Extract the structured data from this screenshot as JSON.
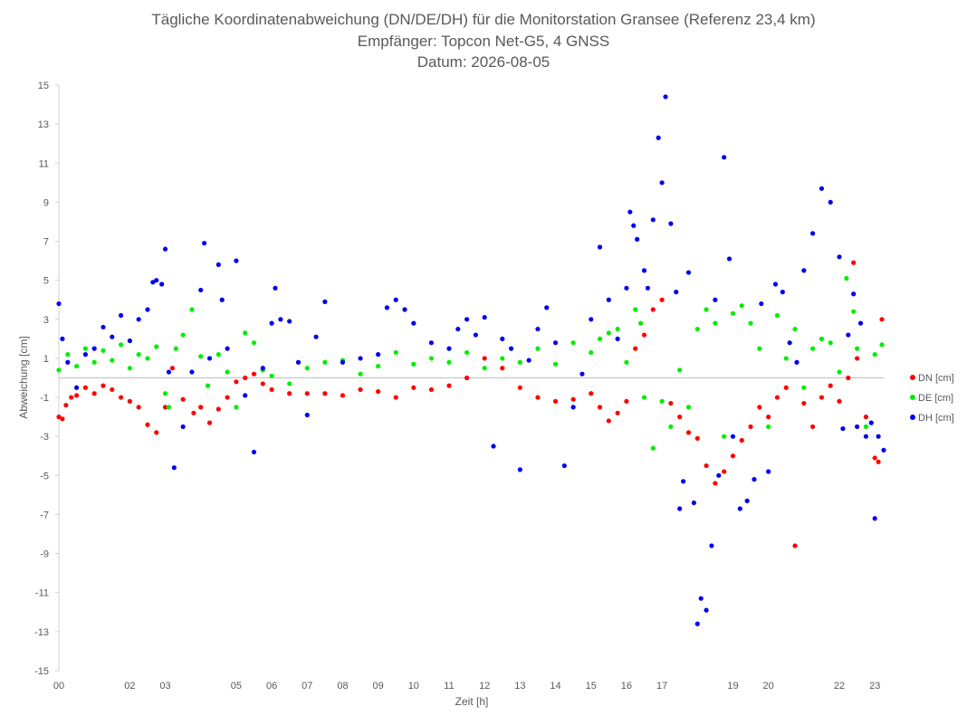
{
  "chart_data": {
    "type": "scatter",
    "title_lines": [
      "Tägliche Koordinatenabweichung (DN/DE/DH) für die Monitorstation Gransee (Referenz 23,4 km)",
      "Empfänger: Topcon Net-G5, 4 GNSS",
      "Datum: 2026-08-05"
    ],
    "xlabel": "Zeit [h]",
    "ylabel": "Abweichung [cm]",
    "xlim": [
      0,
      23.25
    ],
    "ylim": [
      -15,
      15
    ],
    "x_ticks": [
      0,
      2,
      3,
      5,
      6,
      7,
      8,
      9,
      10,
      11,
      12,
      13,
      14,
      15,
      16,
      17,
      19,
      20,
      22,
      23
    ],
    "x_tick_labels": [
      "00",
      "02",
      "03",
      "05",
      "06",
      "07",
      "08",
      "09",
      "10",
      "11",
      "12",
      "13",
      "14",
      "15",
      "16",
      "17",
      "19",
      "20",
      "22",
      "23"
    ],
    "y_ticks": [
      15,
      13,
      11,
      9,
      7,
      5,
      3,
      1,
      -1,
      -3,
      -5,
      -7,
      -9,
      -11,
      -13,
      -15
    ],
    "grid": false,
    "zero_line": true,
    "legend": "right",
    "sample_interval_h": 0.05,
    "series": [
      {
        "name": "DN [cm]",
        "color": "#ff0000",
        "x": [
          0.0,
          0.1,
          0.2,
          0.35,
          0.5,
          0.75,
          1.0,
          1.25,
          1.5,
          1.75,
          2.0,
          2.25,
          2.5,
          2.75,
          3.0,
          3.2,
          3.5,
          3.8,
          4.0,
          4.25,
          4.5,
          4.75,
          5.0,
          5.25,
          5.5,
          5.75,
          6.0,
          6.5,
          7.0,
          7.5,
          8.0,
          8.5,
          9.0,
          9.5,
          10.0,
          10.5,
          11.0,
          11.5,
          12.0,
          12.5,
          13.0,
          13.5,
          14.0,
          14.5,
          15.0,
          15.25,
          15.5,
          15.75,
          16.0,
          16.25,
          16.5,
          16.75,
          17.0,
          17.25,
          17.5,
          17.75,
          18.0,
          18.25,
          18.5,
          18.75,
          19.0,
          19.25,
          19.5,
          19.75,
          20.0,
          20.25,
          20.5,
          20.75,
          21.0,
          21.25,
          21.5,
          21.75,
          22.0,
          22.25,
          22.4,
          22.5,
          22.75,
          23.0,
          23.1,
          23.2
        ],
        "y": [
          -2.0,
          -2.1,
          -1.4,
          -1.0,
          -0.9,
          -0.5,
          -0.8,
          -0.4,
          -0.6,
          -1.0,
          -1.2,
          -1.5,
          -2.4,
          -2.8,
          -1.5,
          0.5,
          -1.1,
          -1.8,
          -1.5,
          -2.3,
          -1.6,
          -1.0,
          -0.2,
          0.0,
          0.2,
          -0.3,
          -0.6,
          -0.8,
          -0.8,
          -0.8,
          -0.9,
          -0.6,
          -0.7,
          -1.0,
          -0.5,
          -0.6,
          -0.4,
          0.0,
          1.0,
          0.5,
          -0.5,
          -1.0,
          -1.2,
          -1.1,
          -0.8,
          -1.5,
          -2.2,
          -1.8,
          -1.2,
          1.5,
          2.2,
          3.5,
          4.0,
          -1.3,
          -2.0,
          -2.8,
          -3.1,
          -4.5,
          -5.4,
          -4.8,
          -4.0,
          -3.2,
          -2.5,
          -1.5,
          -2.0,
          -1.0,
          -0.5,
          -8.6,
          -1.3,
          -2.5,
          -1.0,
          -0.4,
          -1.2,
          0.0,
          5.9,
          1.0,
          -2.0,
          -4.1,
          -4.3,
          3.0
        ]
      },
      {
        "name": "DE [cm]",
        "color": "#00ee00",
        "x": [
          0.0,
          0.25,
          0.5,
          0.75,
          1.0,
          1.25,
          1.5,
          1.75,
          2.0,
          2.25,
          2.5,
          2.75,
          3.0,
          3.1,
          3.3,
          3.5,
          3.75,
          4.0,
          4.2,
          4.5,
          4.75,
          5.0,
          5.25,
          5.5,
          5.75,
          6.0,
          6.5,
          7.0,
          7.5,
          8.0,
          8.5,
          9.0,
          9.5,
          10.0,
          10.5,
          11.0,
          11.5,
          12.0,
          12.5,
          13.0,
          13.5,
          14.0,
          14.5,
          15.0,
          15.25,
          15.5,
          15.75,
          16.0,
          16.25,
          16.4,
          16.5,
          16.75,
          17.0,
          17.25,
          17.5,
          17.75,
          18.0,
          18.25,
          18.5,
          18.75,
          19.0,
          19.25,
          19.5,
          19.75,
          20.0,
          20.25,
          20.5,
          20.75,
          21.0,
          21.25,
          21.5,
          21.75,
          22.0,
          22.2,
          22.4,
          22.5,
          22.75,
          23.0,
          23.2
        ],
        "y": [
          0.4,
          1.2,
          0.6,
          1.5,
          0.8,
          1.4,
          0.9,
          1.7,
          0.5,
          1.2,
          1.0,
          1.6,
          -0.8,
          -1.5,
          1.5,
          2.2,
          3.5,
          1.1,
          -0.4,
          1.2,
          0.3,
          -1.5,
          2.3,
          1.8,
          0.4,
          0.1,
          -0.3,
          0.5,
          0.8,
          0.9,
          0.2,
          0.6,
          1.3,
          0.7,
          1.0,
          0.8,
          1.3,
          0.5,
          1.0,
          0.8,
          1.5,
          0.7,
          1.8,
          1.3,
          2.0,
          2.3,
          2.5,
          0.8,
          3.5,
          2.8,
          -1.0,
          -3.6,
          -1.2,
          -2.5,
          0.4,
          -1.5,
          2.5,
          3.5,
          2.8,
          -3.0,
          3.3,
          3.7,
          2.8,
          1.5,
          -2.5,
          3.2,
          1.0,
          2.5,
          -0.5,
          1.5,
          2.0,
          1.8,
          0.3,
          5.1,
          3.4,
          1.5,
          -2.5,
          1.2,
          1.7
        ]
      },
      {
        "name": "DH [cm]",
        "color": "#0000ee",
        "x": [
          0.0,
          0.1,
          0.25,
          0.5,
          0.75,
          1.0,
          1.25,
          1.5,
          1.75,
          2.0,
          2.25,
          2.5,
          2.65,
          2.75,
          2.9,
          3.0,
          3.1,
          3.25,
          3.5,
          3.75,
          4.0,
          4.1,
          4.25,
          4.5,
          4.6,
          4.75,
          5.0,
          5.25,
          5.5,
          5.75,
          6.0,
          6.1,
          6.25,
          6.5,
          6.75,
          7.0,
          7.25,
          7.5,
          8.0,
          8.5,
          9.0,
          9.25,
          9.5,
          9.75,
          10.0,
          10.5,
          11.0,
          11.25,
          11.5,
          11.75,
          12.0,
          12.25,
          12.5,
          12.75,
          13.0,
          13.25,
          13.5,
          13.75,
          14.0,
          14.25,
          14.5,
          14.75,
          15.0,
          15.25,
          15.5,
          15.75,
          16.0,
          16.1,
          16.2,
          16.3,
          16.5,
          16.6,
          16.75,
          16.9,
          17.0,
          17.1,
          17.25,
          17.4,
          17.5,
          17.6,
          17.75,
          17.9,
          18.0,
          18.1,
          18.25,
          18.4,
          18.5,
          18.6,
          18.75,
          18.9,
          19.0,
          19.2,
          19.4,
          19.6,
          19.8,
          20.0,
          20.2,
          20.4,
          20.6,
          20.8,
          21.0,
          21.25,
          21.5,
          21.75,
          22.0,
          22.1,
          22.25,
          22.4,
          22.5,
          22.6,
          22.75,
          22.9,
          23.0,
          23.1,
          23.25
        ],
        "y": [
          3.8,
          2.0,
          0.8,
          -0.5,
          1.2,
          1.5,
          2.6,
          2.1,
          3.2,
          1.9,
          3.0,
          3.5,
          4.9,
          5.0,
          4.8,
          6.6,
          0.3,
          -4.6,
          -2.5,
          0.3,
          4.5,
          6.9,
          1.0,
          5.8,
          4.0,
          1.5,
          6.0,
          -0.9,
          -3.8,
          0.5,
          2.8,
          4.6,
          3.0,
          2.9,
          0.8,
          -1.9,
          2.1,
          3.9,
          0.8,
          1.0,
          1.2,
          3.6,
          4.0,
          3.5,
          2.8,
          1.8,
          1.5,
          2.5,
          3.0,
          2.2,
          3.1,
          -3.5,
          2.0,
          1.5,
          -4.7,
          0.9,
          2.5,
          3.6,
          1.8,
          -4.5,
          -1.5,
          0.2,
          3.0,
          6.7,
          4.0,
          2.0,
          4.6,
          8.5,
          7.8,
          7.1,
          5.5,
          4.6,
          8.1,
          12.3,
          10.0,
          14.4,
          7.9,
          4.4,
          -6.7,
          -5.3,
          5.4,
          -6.4,
          -12.6,
          -11.3,
          -11.9,
          -8.6,
          4.0,
          -5.0,
          11.3,
          6.1,
          -3.0,
          -6.7,
          -6.3,
          -5.2,
          3.8,
          -4.8,
          4.8,
          4.4,
          1.8,
          0.8,
          5.5,
          7.4,
          9.7,
          9.0,
          6.2,
          -2.6,
          2.2,
          4.3,
          -2.5,
          2.8,
          -3.0,
          -2.3,
          -7.2,
          -3.0,
          -3.7
        ]
      }
    ]
  }
}
